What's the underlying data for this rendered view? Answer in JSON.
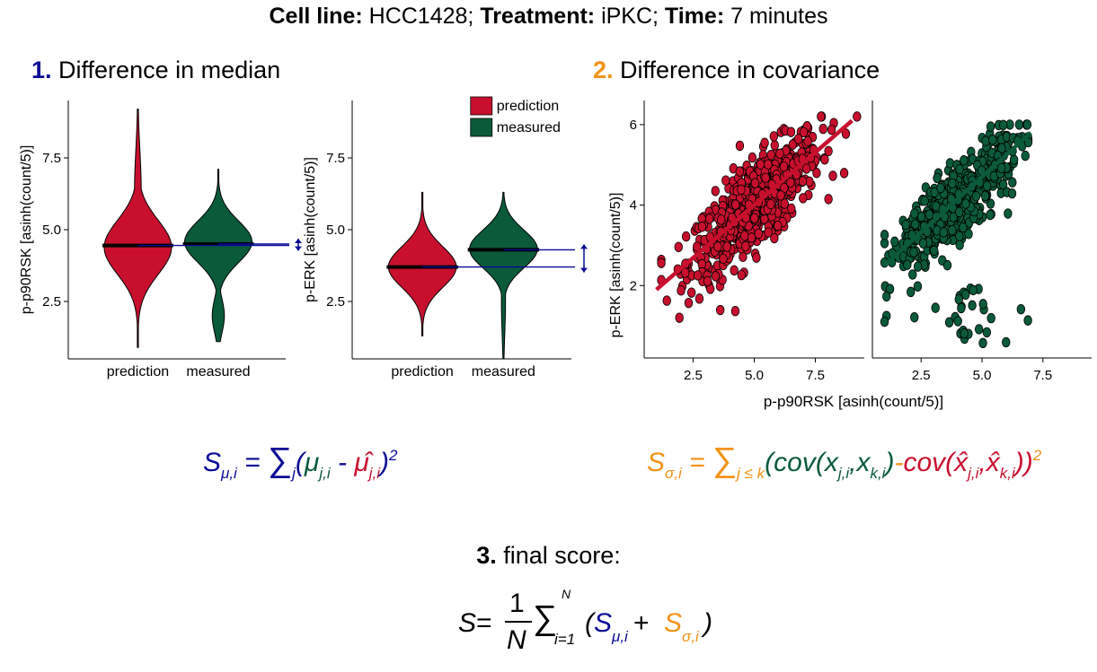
{
  "header": {
    "cell_line_label": "Cell line:",
    "cell_line_value": " HCC1428; ",
    "treatment_label": "Treatment:",
    "treatment_value": " iPKC; ",
    "time_label": "Time:",
    "time_value": " 7 minutes"
  },
  "section1": {
    "number": "1.",
    "title": " Difference in median",
    "number_color": "#0a0a96"
  },
  "section2": {
    "number": "2.",
    "title": " Difference in covariance",
    "number_color": "#f39217"
  },
  "section3": {
    "number": "3.",
    "title": " final score:"
  },
  "colors": {
    "prediction": "#c8102e",
    "measured": "#0b5a3a",
    "blue": "#0a0a96",
    "orange": "#f39217"
  },
  "chart_data": [
    {
      "type": "violin",
      "ylabel": "p-p90RSK [asinh(count/5)]",
      "categories": [
        "prediction",
        "measured"
      ],
      "yticks": [
        "2.5",
        "5.0",
        "7.5"
      ],
      "ylim": [
        0.5,
        9.5
      ],
      "medians": [
        4.45,
        4.5
      ],
      "ranges": [
        [
          0.9,
          9.2
        ],
        [
          1.1,
          7.1
        ]
      ]
    },
    {
      "type": "violin",
      "ylabel": "p-ERK [asinh(count/5)]",
      "categories": [
        "prediction",
        "measured"
      ],
      "yticks": [
        "2.5",
        "5.0",
        "7.5"
      ],
      "ylim": [
        0.5,
        9.5
      ],
      "medians": [
        3.7,
        4.3
      ],
      "ranges": [
        [
          1.3,
          6.3
        ],
        [
          0.5,
          6.3
        ]
      ],
      "legend": {
        "position": "top-right",
        "entries": [
          "prediction",
          "measured"
        ]
      }
    },
    {
      "type": "scatter",
      "ylabel": "p-ERK [asinh(count/5)]",
      "xlabel": "p-p90RSK [asinh(count/5)]",
      "panels": [
        {
          "series": "prediction",
          "xlim": [
            0.5,
            9.5
          ],
          "ylim": [
            0.2,
            6.6
          ],
          "xticks": [
            "2.5",
            "5.0",
            "7.5"
          ],
          "yticks": [
            "2",
            "4",
            "6"
          ],
          "fit": [
            [
              1,
              1.9
            ],
            [
              9,
              6.1
            ]
          ]
        },
        {
          "series": "measured",
          "xlim": [
            0.5,
            9.5
          ],
          "ylim": [
            0.2,
            6.6
          ],
          "xticks": [
            "2.5",
            "5.0",
            "7.5"
          ],
          "fit": [
            [
              1,
              2.5
            ],
            [
              7,
              5.8
            ]
          ]
        }
      ]
    }
  ],
  "formula1": {
    "lhs": "S",
    "lhs_sub": "μ,i",
    "eq": " = ",
    "sigma": "∑",
    "sigma_sub": "j",
    "open": "(",
    "mu": "μ",
    "mu_sub": "j,i",
    "minus": " - ",
    "muhat": "μ̂",
    "muhat_sub": "j,i",
    "close": ")",
    "power": "2"
  },
  "formula2": {
    "lhs": "S",
    "lhs_sub": "σ,i",
    "eq": " = ",
    "sigma": "∑",
    "sigma_sub": "j ≤ k",
    "open": "(",
    "cov1": "cov(x",
    "cov1_sub1": "j,i",
    "cov1_mid": ",x",
    "cov1_sub2": "k,i",
    "cov1_close": ")",
    "minus": "-",
    "cov2": "cov(x̂",
    "cov2_sub1": "j,i",
    "cov2_mid": ",x̂",
    "cov2_sub2": "k,i",
    "cov2_close": ")",
    "close": ")",
    "power": "2"
  },
  "formula3": {
    "lhs": "S",
    "eq": " = ",
    "numerator": "1",
    "denominator": "N",
    "sigma": "∑",
    "sigma_sup": "N",
    "sigma_sub": "i=1",
    "open": "(",
    "s1": "S",
    "s1_sub": "μ,i",
    "plus": " + ",
    "s2": "S",
    "s2_sub": "σ,i",
    "close": ")"
  }
}
